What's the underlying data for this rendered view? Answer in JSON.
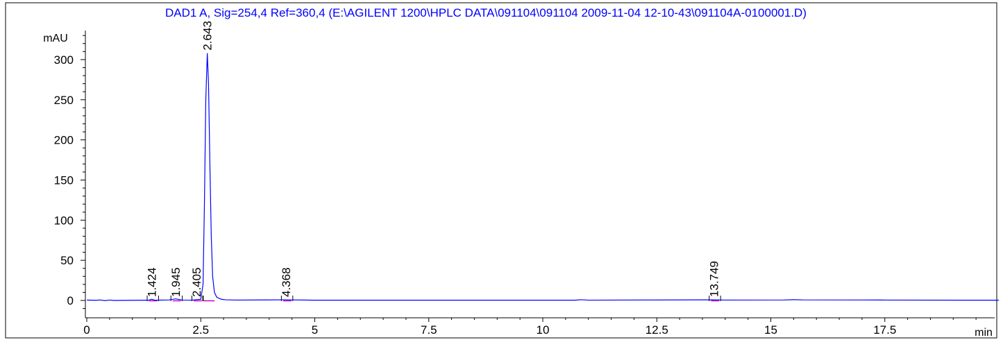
{
  "chart_data": {
    "type": "line",
    "title": "DAD1 A, Sig=254,4 Ref=360,4 (E:\\AGILENT 1200\\HPLC DATA\\091104\\091104 2009-11-04 12-10-43\\091104A-0100001.D)",
    "xlabel": "min",
    "ylabel": "mAU",
    "xlim": [
      0,
      20
    ],
    "ylim": [
      -23,
      340
    ],
    "x_ticks": [
      0,
      2.5,
      5,
      7.5,
      10,
      12.5,
      15,
      17.5
    ],
    "x_tick_labels": [
      "0",
      "2.5",
      "5",
      "7.5",
      "10",
      "12.5",
      "15",
      "17.5"
    ],
    "y_ticks": [
      0,
      50,
      100,
      150,
      200,
      250,
      300
    ],
    "y_tick_labels": [
      "0",
      "50",
      "100",
      "150",
      "200",
      "250",
      "300"
    ],
    "grid": false,
    "colors": {
      "title": "#0000ff",
      "signal": "#0000ff",
      "baseline": "#cc00cc",
      "axes": "#000000"
    },
    "peaks": [
      {
        "rt": 1.424,
        "label": "1.424",
        "height": 1.5
      },
      {
        "rt": 1.945,
        "label": "1.945",
        "height": 2
      },
      {
        "rt": 2.405,
        "label": "2.405",
        "height": 1
      },
      {
        "rt": 2.643,
        "label": "2.643",
        "height": 308
      },
      {
        "rt": 4.368,
        "label": "4.368",
        "height": 0.8
      },
      {
        "rt": 13.749,
        "label": "13.749",
        "height": 0.8
      }
    ],
    "series": [
      {
        "values": [
          [
            0,
            0.5
          ],
          [
            0.2,
            0.2
          ],
          [
            0.3,
            0.6
          ],
          [
            0.4,
            -0.2
          ],
          [
            0.5,
            0.5
          ],
          [
            0.6,
            0
          ],
          [
            1.0,
            0.2
          ],
          [
            1.35,
            0.3
          ],
          [
            1.424,
            1.5
          ],
          [
            1.5,
            0.3
          ],
          [
            1.8,
            0.6
          ],
          [
            1.945,
            2
          ],
          [
            2.1,
            0.5
          ],
          [
            2.3,
            0.4
          ],
          [
            2.405,
            1
          ],
          [
            2.5,
            1.5
          ],
          [
            2.55,
            20
          ],
          [
            2.58,
            120
          ],
          [
            2.61,
            250
          ],
          [
            2.643,
            308
          ],
          [
            2.67,
            270
          ],
          [
            2.7,
            170
          ],
          [
            2.73,
            80
          ],
          [
            2.76,
            30
          ],
          [
            2.8,
            10
          ],
          [
            2.85,
            4
          ],
          [
            2.95,
            1.5
          ],
          [
            3.05,
            0.8
          ],
          [
            3.3,
            0.5
          ],
          [
            4.368,
            0.8
          ],
          [
            5,
            0.3
          ],
          [
            7.5,
            0.3
          ],
          [
            10.7,
            0.3
          ],
          [
            10.85,
            0.9
          ],
          [
            11.0,
            0.4
          ],
          [
            13.749,
            0.8
          ],
          [
            14,
            0.5
          ],
          [
            15.3,
            0.6
          ],
          [
            15.5,
            1.0
          ],
          [
            15.7,
            0.7
          ],
          [
            17,
            0.6
          ],
          [
            17.5,
            0.5
          ],
          [
            20,
            0.3
          ]
        ]
      }
    ]
  }
}
